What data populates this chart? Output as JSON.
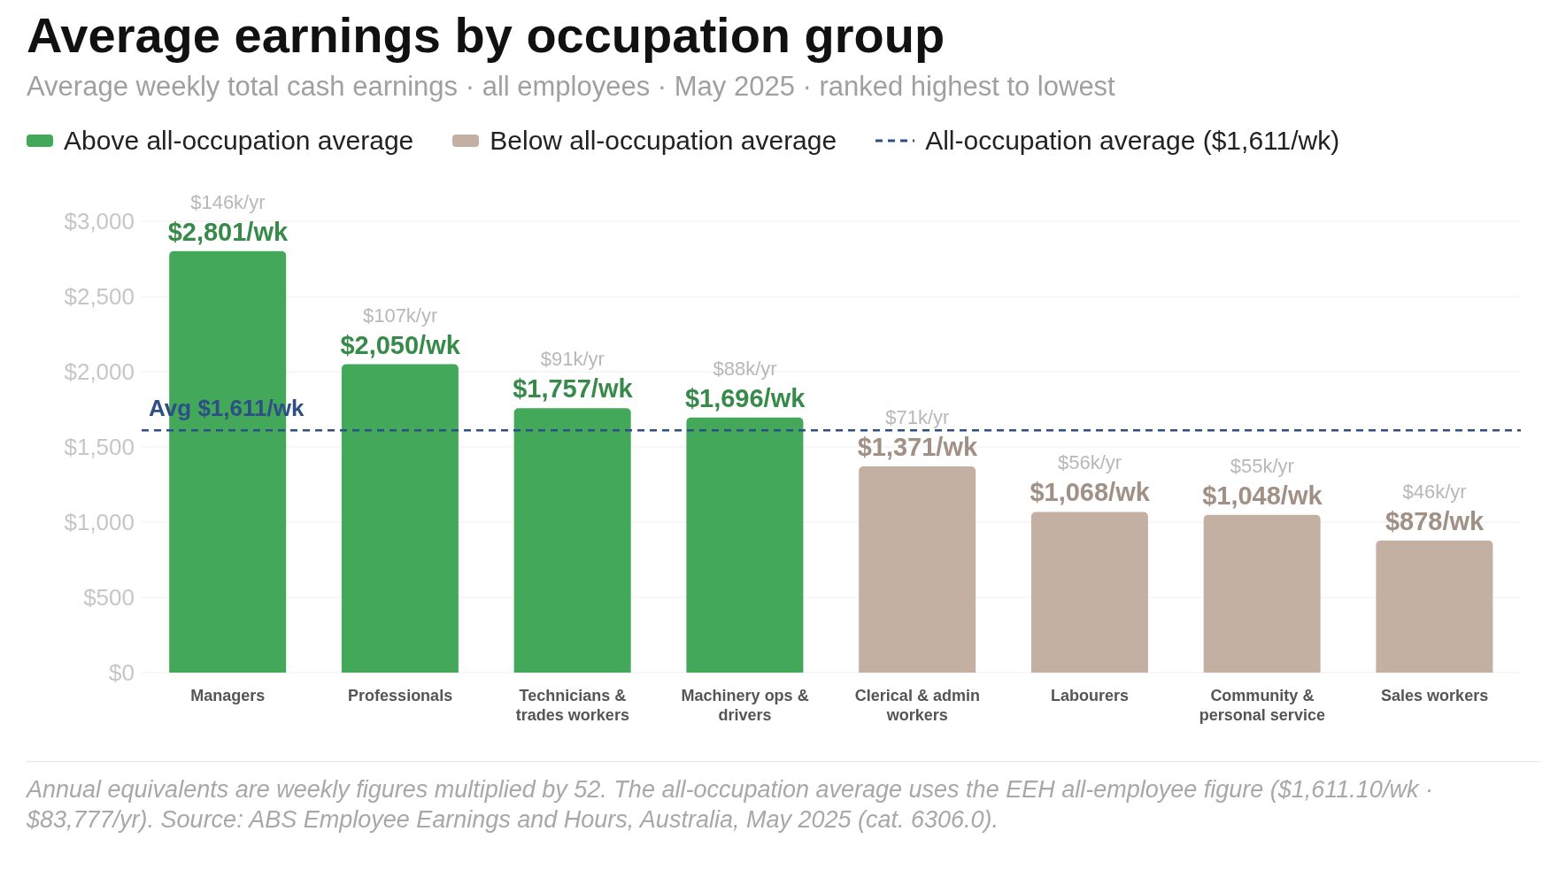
{
  "chart_data": {
    "type": "bar",
    "title": "Average earnings by occupation group",
    "subtitle": "Average weekly total cash earnings · all employees · May 2025 · ranked highest to lowest",
    "categories": [
      "Managers",
      "Professionals",
      "Technicians & trades workers",
      "Machinery ops & drivers",
      "Clerical & admin workers",
      "Labourers",
      "Community & personal service",
      "Sales workers"
    ],
    "stacked": true,
    "series": [
      {
        "name": "Above all-occupation average",
        "color": "#43a85a",
        "values": [
          2801,
          2050,
          1757,
          1696,
          null,
          null,
          null,
          null
        ],
        "value_labels": [
          "$2,801/wk",
          "$2,050/wk",
          "$1,757/wk",
          "$1,696/wk",
          null,
          null,
          null,
          null
        ]
      },
      {
        "name": "Below all-occupation average",
        "color": "#c4b0a2",
        "values": [
          null,
          null,
          null,
          null,
          1371,
          1068,
          1048,
          878
        ],
        "value_labels": [
          null,
          null,
          null,
          null,
          "$1,371/wk",
          "$1,068/wk",
          "$1,048/wk",
          "$878/wk"
        ]
      }
    ],
    "ylim": [
      0,
      3000
    ],
    "yticks": [
      {
        "value": 0,
        "label": "$0"
      },
      {
        "value": 500,
        "label": "$500"
      },
      {
        "value": 1000,
        "label": "$1,000"
      },
      {
        "value": 1500,
        "label": "$1,500"
      },
      {
        "value": 2000,
        "label": "$2,000"
      },
      {
        "value": 2500,
        "label": "$2,500"
      },
      {
        "value": 3000,
        "label": "$3,000"
      }
    ],
    "grid": "y",
    "legend": "top left",
    "ref_lines": [
      {
        "axis": "y",
        "value": 1611,
        "label": "Avg $1,611/wk",
        "color": "#2d4f86",
        "line_style": "dashed"
      }
    ],
    "annotations": [
      "All-occupation average ($1,611/wk)",
      "Annual equivalents are weekly figures multiplied by 52. The all-occupation average uses the EEH all-employee figure ($1,611.10/wk · $83,777/yr). Source: ABS Employee Earnings and Hours, Australia, May 2025 (cat. 6306.0).",
      {
        "text": "$146k/yr",
        "x": "Managers",
        "y": 2801
      },
      {
        "text": "$107k/yr",
        "x": "Professionals",
        "y": 2050
      },
      {
        "text": "$91k/yr",
        "x": "Technicians & trades workers",
        "y": 1757
      },
      {
        "text": "$88k/yr",
        "x": "Machinery ops & drivers",
        "y": 1696
      },
      {
        "text": "$71k/yr",
        "x": "Clerical & admin workers",
        "y": 1371
      },
      {
        "text": "$56k/yr",
        "x": "Labourers",
        "y": 1068
      },
      {
        "text": "$55k/yr",
        "x": "Community & personal service",
        "y": 1048
      },
      {
        "text": "$46k/yr",
        "x": "Sales workers",
        "y": 878
      }
    ]
  }
}
